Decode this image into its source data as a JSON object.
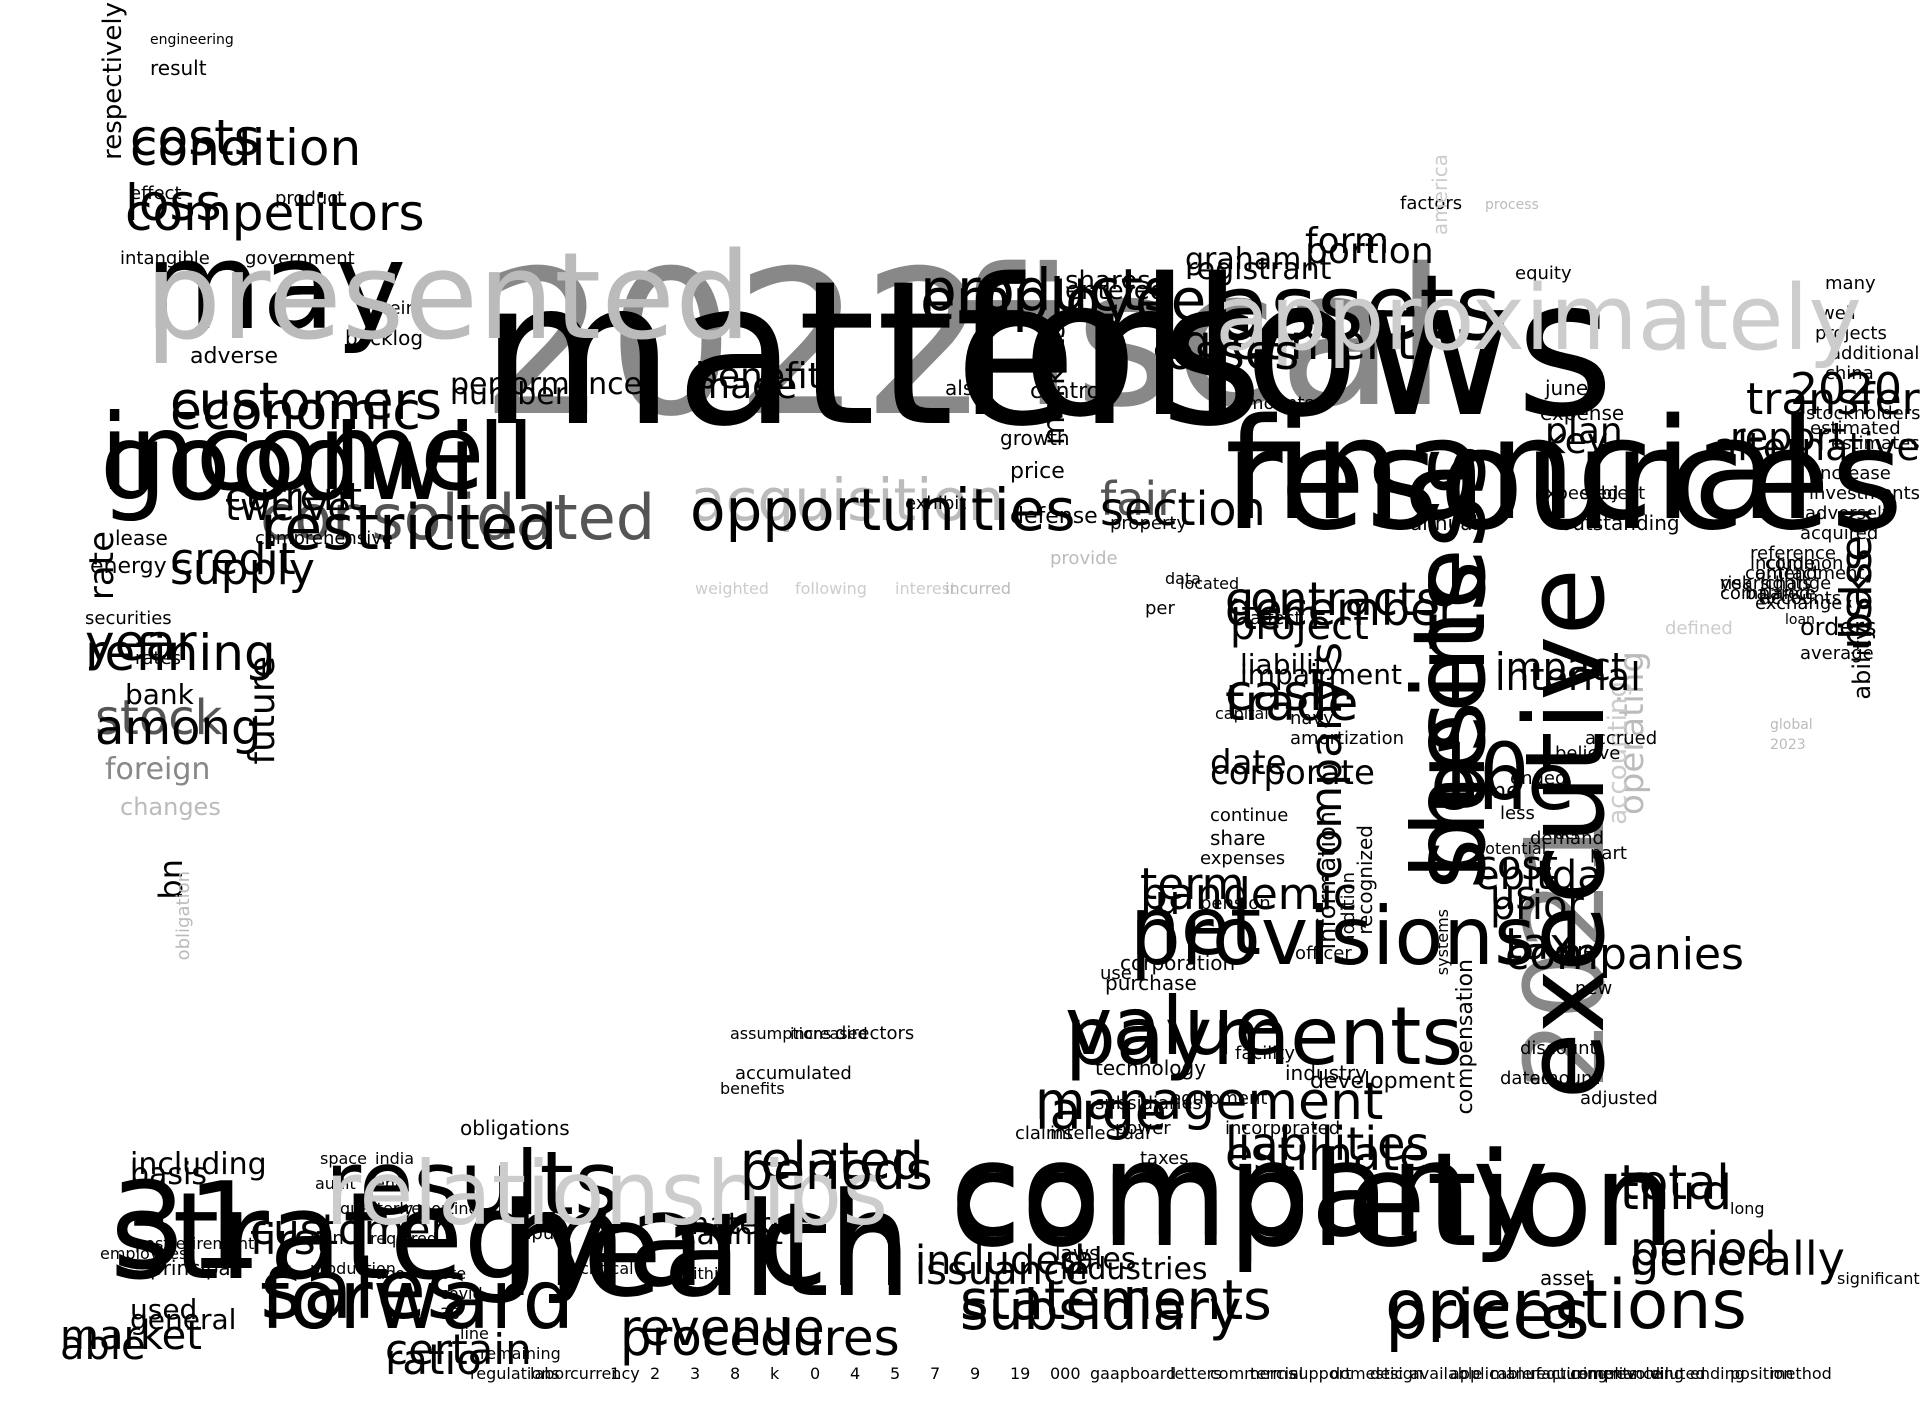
{
  "palette": {
    "black": "#000000",
    "dark_gray": "#555555",
    "mid_gray": "#888888",
    "light_gray": "#bbbbbb",
    "pale_gray": "#cccccc"
  },
  "words": [
    {
      "text": "2022",
      "tone": "mid"
    },
    {
      "text": "fiscal",
      "tone": "mid"
    },
    {
      "text": "financial",
      "tone": "black"
    },
    {
      "text": "company",
      "tone": "black"
    },
    {
      "text": "march",
      "tone": "black"
    },
    {
      "text": "31",
      "tone": "black"
    },
    {
      "text": "2021",
      "tone": "mid"
    },
    {
      "text": "business",
      "tone": "black"
    },
    {
      "text": "may",
      "tone": "black"
    },
    {
      "text": "income",
      "tone": "black"
    },
    {
      "text": "assets",
      "tone": "black"
    },
    {
      "text": "results",
      "tone": "black"
    },
    {
      "text": "sales",
      "tone": "black"
    },
    {
      "text": "operations",
      "tone": "black"
    },
    {
      "text": "statements",
      "tone": "black"
    },
    {
      "text": "value",
      "tone": "black"
    },
    {
      "text": "net",
      "tone": "black"
    },
    {
      "text": "products",
      "tone": "black"
    },
    {
      "text": "consolidated",
      "tone": "dark"
    },
    {
      "text": "acquisition",
      "tone": "light"
    },
    {
      "text": "customers",
      "tone": "black"
    },
    {
      "text": "agreement",
      "tone": "black"
    },
    {
      "text": "contracts",
      "tone": "black"
    },
    {
      "text": "cash",
      "tone": "black"
    },
    {
      "text": "10",
      "tone": "black"
    },
    {
      "text": "management",
      "tone": "black"
    },
    {
      "text": "revenue",
      "tone": "black"
    },
    {
      "text": "related",
      "tone": "black"
    },
    {
      "text": "customer",
      "tone": "black"
    },
    {
      "text": "liabilities",
      "tone": "black"
    },
    {
      "text": "certain",
      "tone": "black"
    },
    {
      "text": "market",
      "tone": "black"
    },
    {
      "text": "period",
      "tone": "black"
    },
    {
      "text": "total",
      "tone": "black"
    },
    {
      "text": "included",
      "tone": "black"
    },
    {
      "text": "costs",
      "tone": "black"
    },
    {
      "text": "loss",
      "tone": "black"
    },
    {
      "text": "credit",
      "tone": "black"
    },
    {
      "text": "year",
      "tone": "black"
    },
    {
      "text": "stock",
      "tone": "dark"
    },
    {
      "text": "current",
      "tone": "black"
    },
    {
      "text": "fair",
      "tone": "dark"
    },
    {
      "text": "benefit",
      "tone": "black"
    },
    {
      "text": "form",
      "tone": "black"
    },
    {
      "text": "graham",
      "tone": "black"
    },
    {
      "text": "report",
      "tone": "black"
    },
    {
      "text": "2020",
      "tone": "black"
    },
    {
      "text": "based",
      "tone": "black"
    },
    {
      "text": "item",
      "tone": "black"
    },
    {
      "text": "impact",
      "tone": "black"
    },
    {
      "text": "tax",
      "tone": "black"
    },
    {
      "text": "cost",
      "tone": "black"
    },
    {
      "text": "us",
      "tone": "black"
    },
    {
      "text": "term",
      "tone": "black"
    },
    {
      "text": "plan",
      "tone": "black"
    },
    {
      "text": "performance",
      "tone": "black"
    },
    {
      "text": "including",
      "tone": "black"
    },
    {
      "text": "material",
      "tone": "black"
    },
    {
      "text": "used",
      "tone": "black"
    },
    {
      "text": "sales",
      "tone": "black"
    },
    {
      "text": "shares",
      "tone": "black"
    },
    {
      "text": "liability",
      "tone": "black"
    },
    {
      "text": "date",
      "tone": "black"
    },
    {
      "text": "company's",
      "tone": "black"
    },
    {
      "text": "operating",
      "tone": "light"
    },
    {
      "text": "accounting",
      "tone": "pale"
    },
    {
      "text": "foreign",
      "tone": "mid"
    },
    {
      "text": "changes",
      "tone": "light"
    },
    {
      "text": "energy",
      "tone": "black"
    },
    {
      "text": "rate",
      "tone": "black"
    },
    {
      "text": "future",
      "tone": "black"
    },
    {
      "text": "respectively",
      "tone": "black"
    },
    {
      "text": "bn",
      "tone": "black"
    },
    {
      "text": "lease",
      "tone": "black"
    },
    {
      "text": "bank",
      "tone": "black"
    },
    {
      "text": "rates",
      "tone": "black"
    },
    {
      "text": "securities",
      "tone": "black"
    },
    {
      "text": "adverse",
      "tone": "black"
    },
    {
      "text": "effect",
      "tone": "black"
    },
    {
      "text": "intangible",
      "tone": "black"
    },
    {
      "text": "government",
      "tone": "black"
    },
    {
      "text": "product",
      "tone": "black"
    },
    {
      "text": "result",
      "tone": "black"
    },
    {
      "text": "engineering",
      "tone": "black"
    },
    {
      "text": "backlog",
      "tone": "black"
    },
    {
      "text": "herein",
      "tone": "black"
    },
    {
      "text": "comprehensive",
      "tone": "black"
    },
    {
      "text": "orders",
      "tone": "black"
    },
    {
      "text": "outstanding",
      "tone": "black"
    },
    {
      "text": "annual",
      "tone": "black"
    },
    {
      "text": "subject",
      "tone": "black"
    },
    {
      "text": "expense",
      "tone": "black"
    },
    {
      "text": "june",
      "tone": "black"
    },
    {
      "text": "equity",
      "tone": "black"
    },
    {
      "text": "expected",
      "tone": "black"
    },
    {
      "text": "defense",
      "tone": "black"
    },
    {
      "text": "price",
      "tone": "black"
    },
    {
      "text": "growth",
      "tone": "black"
    },
    {
      "text": "control",
      "tone": "black"
    },
    {
      "text": "amounts",
      "tone": "black"
    },
    {
      "text": "also",
      "tone": "black"
    },
    {
      "text": "exhibit",
      "tone": "black"
    },
    {
      "text": "markets",
      "tone": "black"
    },
    {
      "text": "property",
      "tone": "black"
    },
    {
      "text": "located",
      "tone": "black"
    },
    {
      "text": "affect",
      "tone": "black"
    },
    {
      "text": "factors",
      "tone": "black"
    },
    {
      "text": "america",
      "tone": "pale"
    },
    {
      "text": "process",
      "tone": "light"
    },
    {
      "text": "weighted",
      "tone": "pale"
    },
    {
      "text": "following",
      "tone": "pale"
    },
    {
      "text": "interest",
      "tone": "pale"
    },
    {
      "text": "incurred",
      "tone": "light"
    },
    {
      "text": "provide",
      "tone": "light"
    },
    {
      "text": "defined",
      "tone": "pale"
    },
    {
      "text": "global",
      "tone": "light"
    },
    {
      "text": "2023",
      "tone": "light"
    },
    {
      "text": "obligation",
      "tone": "light"
    },
    {
      "text": "data",
      "tone": "black"
    },
    {
      "text": "per",
      "tone": "black"
    },
    {
      "text": "u",
      "tone": "black"
    },
    {
      "text": "pension",
      "tone": "black"
    },
    {
      "text": "share",
      "tone": "black"
    },
    {
      "text": "expenses",
      "tone": "black"
    },
    {
      "text": "continue",
      "tone": "black"
    },
    {
      "text": "capital",
      "tone": "black"
    },
    {
      "text": "information",
      "tone": "black"
    },
    {
      "text": "recognized",
      "tone": "black"
    },
    {
      "text": "purchase",
      "tone": "black"
    },
    {
      "text": "corporation",
      "tone": "black"
    },
    {
      "text": "officer",
      "tone": "black"
    },
    {
      "text": "industry",
      "tone": "black"
    },
    {
      "text": "facility",
      "tone": "black"
    },
    {
      "text": "power",
      "tone": "black"
    },
    {
      "text": "incorporated",
      "tone": "black"
    },
    {
      "text": "development",
      "tone": "black"
    },
    {
      "text": "taxes",
      "tone": "black"
    },
    {
      "text": "equipment",
      "tone": "black"
    },
    {
      "text": "compensation",
      "tone": "black"
    },
    {
      "text": "systems",
      "tone": "black"
    },
    {
      "text": "time",
      "tone": "black"
    },
    {
      "text": "due",
      "tone": "black"
    },
    {
      "text": "new",
      "tone": "black"
    },
    {
      "text": "discount",
      "tone": "black"
    },
    {
      "text": "amount",
      "tone": "black"
    },
    {
      "text": "dated",
      "tone": "black"
    },
    {
      "text": "adjusted",
      "tone": "black"
    },
    {
      "text": "asset",
      "tone": "black"
    },
    {
      "text": "long",
      "tone": "black"
    },
    {
      "text": "significant",
      "tone": "black"
    },
    {
      "text": "navy",
      "tone": "black"
    },
    {
      "text": "amortization",
      "tone": "black"
    },
    {
      "text": "accrued",
      "tone": "black"
    },
    {
      "text": "believe",
      "tone": "black"
    },
    {
      "text": "demand",
      "tone": "black"
    },
    {
      "text": "less",
      "tone": "black"
    },
    {
      "text": "act",
      "tone": "black"
    },
    {
      "text": "part",
      "tone": "black"
    },
    {
      "text": "ended",
      "tone": "black"
    },
    {
      "text": "potential",
      "tone": "black"
    },
    {
      "text": "addition",
      "tone": "black"
    },
    {
      "text": "loan",
      "tone": "black"
    },
    {
      "text": "average",
      "tone": "black"
    },
    {
      "text": "ability",
      "tone": "black"
    },
    {
      "text": "exchange",
      "tone": "black"
    },
    {
      "text": "balance",
      "tone": "black"
    },
    {
      "text": "accounts",
      "tone": "black"
    },
    {
      "text": "years",
      "tone": "black"
    },
    {
      "text": "compared",
      "tone": "black"
    },
    {
      "text": "risk",
      "tone": "black"
    },
    {
      "text": "rights",
      "tone": "black"
    },
    {
      "text": "change",
      "tone": "black"
    },
    {
      "text": "amendment",
      "tone": "black"
    },
    {
      "text": "include",
      "tone": "black"
    },
    {
      "text": "common",
      "tone": "black"
    },
    {
      "text": "contract",
      "tone": "black"
    },
    {
      "text": "reference",
      "tone": "black"
    },
    {
      "text": "acquired",
      "tone": "black"
    },
    {
      "text": "adversely",
      "tone": "black"
    },
    {
      "text": "investments",
      "tone": "black"
    },
    {
      "text": "increase",
      "tone": "black"
    },
    {
      "text": "estimates",
      "tone": "black"
    },
    {
      "text": "estimated",
      "tone": "black"
    },
    {
      "text": "stockholders",
      "tone": "black"
    },
    {
      "text": "china",
      "tone": "black"
    },
    {
      "text": "additional",
      "tone": "black"
    },
    {
      "text": "projects",
      "tone": "black"
    },
    {
      "text": "well",
      "tone": "black"
    },
    {
      "text": "many",
      "tone": "black"
    },
    {
      "text": "laws",
      "tone": "black"
    },
    {
      "text": "technology",
      "tone": "black"
    },
    {
      "text": "subsidiaries",
      "tone": "black"
    },
    {
      "text": "claims",
      "tone": "black"
    },
    {
      "text": "intellectual",
      "tone": "black"
    },
    {
      "text": "directors",
      "tone": "black"
    },
    {
      "text": "increased",
      "tone": "black"
    },
    {
      "text": "benefits",
      "tone": "black"
    },
    {
      "text": "accumulated",
      "tone": "black"
    },
    {
      "text": "assumptions",
      "tone": "black"
    },
    {
      "text": "critical",
      "tone": "black"
    },
    {
      "text": "inputs",
      "tone": "black"
    },
    {
      "text": "obligations",
      "tone": "black"
    },
    {
      "text": "end",
      "tone": "black"
    },
    {
      "text": "non",
      "tone": "black"
    },
    {
      "text": "use",
      "tone": "black"
    },
    {
      "text": "principal",
      "tone": "black"
    },
    {
      "text": "postretirement",
      "tone": "black"
    },
    {
      "text": "employees",
      "tone": "black"
    },
    {
      "text": "reporting",
      "tone": "black"
    },
    {
      "text": "audit",
      "tone": "black"
    },
    {
      "text": "space",
      "tone": "black"
    },
    {
      "text": "india",
      "tone": "black"
    },
    {
      "text": "quarterly",
      "tone": "black"
    },
    {
      "text": "required",
      "tone": "black"
    },
    {
      "text": "within",
      "tone": "black"
    },
    {
      "text": "production",
      "tone": "black"
    },
    {
      "text": "upon",
      "tone": "black"
    },
    {
      "text": "note",
      "tone": "black"
    },
    {
      "text": "covid",
      "tone": "black"
    },
    {
      "text": "30",
      "tone": "black"
    },
    {
      "text": "line",
      "tone": "black"
    },
    {
      "text": "remaining",
      "tone": "black"
    },
    {
      "text": "regulations",
      "tone": "black"
    },
    {
      "text": "labor",
      "tone": "black"
    },
    {
      "text": "currency",
      "tone": "black"
    },
    {
      "text": "1",
      "tone": "black"
    },
    {
      "text": "2",
      "tone": "black"
    },
    {
      "text": "3",
      "tone": "black"
    },
    {
      "text": "8",
      "tone": "black"
    },
    {
      "text": "k",
      "tone": "black"
    },
    {
      "text": "0",
      "tone": "black"
    },
    {
      "text": "4",
      "tone": "black"
    },
    {
      "text": "5",
      "tone": "black"
    },
    {
      "text": "7",
      "tone": "black"
    },
    {
      "text": "9",
      "tone": "black"
    },
    {
      "text": "19",
      "tone": "black"
    },
    {
      "text": "000",
      "tone": "black"
    },
    {
      "text": "gaap",
      "tone": "black"
    },
    {
      "text": "board",
      "tone": "black"
    },
    {
      "text": "letters",
      "tone": "black"
    },
    {
      "text": "commercial",
      "tone": "black"
    },
    {
      "text": "terms",
      "tone": "black"
    },
    {
      "text": "support",
      "tone": "black"
    },
    {
      "text": "domestic",
      "tone": "black"
    },
    {
      "text": "design",
      "tone": "black"
    },
    {
      "text": "available",
      "tone": "black"
    },
    {
      "text": "applicable",
      "tone": "black"
    },
    {
      "text": "manufacturing",
      "tone": "black"
    },
    {
      "text": "requirements",
      "tone": "black"
    },
    {
      "text": "compliance",
      "tone": "black"
    },
    {
      "text": "revolving",
      "tone": "black"
    },
    {
      "text": "diluted",
      "tone": "black"
    },
    {
      "text": "ending",
      "tone": "black"
    },
    {
      "text": "position",
      "tone": "black"
    },
    {
      "text": "method",
      "tone": "black"
    },
    {
      "text": "matters",
      "tone": "black"
    },
    {
      "text": "follows",
      "tone": "black"
    },
    {
      "text": "resources",
      "tone": "black"
    },
    {
      "text": "completion",
      "tone": "black"
    },
    {
      "text": "health",
      "tone": "black"
    },
    {
      "text": "strategy",
      "tone": "black"
    },
    {
      "text": "executive",
      "tone": "black"
    },
    {
      "text": "sheets",
      "tone": "black"
    },
    {
      "text": "presented",
      "tone": "light"
    },
    {
      "text": "goodwill",
      "tone": "black"
    },
    {
      "text": "approximately",
      "tone": "pale"
    },
    {
      "text": "relationships",
      "tone": "pale"
    },
    {
      "text": "forward",
      "tone": "black"
    },
    {
      "text": "prices",
      "tone": "black"
    },
    {
      "text": "subsidiary",
      "tone": "black"
    },
    {
      "text": "payments",
      "tone": "black"
    },
    {
      "text": "provisions",
      "tone": "black"
    },
    {
      "text": "employee",
      "tone": "black"
    },
    {
      "text": "restricted",
      "tone": "black"
    },
    {
      "text": "opportunities",
      "tone": "black"
    },
    {
      "text": "economic",
      "tone": "black"
    },
    {
      "text": "losses",
      "tone": "black"
    },
    {
      "text": "december",
      "tone": "black"
    },
    {
      "text": "trade",
      "tone": "black"
    },
    {
      "text": "one",
      "tone": "black"
    },
    {
      "text": "large",
      "tone": "black"
    },
    {
      "text": "procedures",
      "tone": "black"
    },
    {
      "text": "periods",
      "tone": "black"
    },
    {
      "text": "first",
      "tone": "black"
    },
    {
      "text": "estimate",
      "tone": "black"
    },
    {
      "text": "ratio",
      "tone": "black"
    },
    {
      "text": "able",
      "tone": "black"
    },
    {
      "text": "generally",
      "tone": "black"
    },
    {
      "text": "third",
      "tone": "black"
    },
    {
      "text": "issuance",
      "tone": "black"
    },
    {
      "text": "condition",
      "tone": "black"
    },
    {
      "text": "competitors",
      "tone": "black"
    },
    {
      "text": "supply",
      "tone": "black"
    },
    {
      "text": "refining",
      "tone": "black"
    },
    {
      "text": "among",
      "tone": "black"
    },
    {
      "text": "twelve",
      "tone": "black"
    },
    {
      "text": "section",
      "tone": "black"
    },
    {
      "text": "made",
      "tone": "black"
    },
    {
      "text": "portion",
      "tone": "black"
    },
    {
      "text": "registrant",
      "tone": "black"
    },
    {
      "text": "alternative",
      "tone": "black"
    },
    {
      "text": "transfer",
      "tone": "black"
    },
    {
      "text": "risks",
      "tone": "black"
    },
    {
      "text": "project",
      "tone": "black"
    },
    {
      "text": "internal",
      "tone": "black"
    },
    {
      "text": "companies",
      "tone": "black"
    },
    {
      "text": "ebitda",
      "tone": "black"
    },
    {
      "text": "prior",
      "tone": "black"
    },
    {
      "text": "pandemic",
      "tone": "black"
    },
    {
      "text": "key",
      "tone": "black"
    },
    {
      "text": "number",
      "tone": "black"
    },
    {
      "text": "basis",
      "tone": "black"
    },
    {
      "text": "cannot",
      "tone": "black"
    },
    {
      "text": "general",
      "tone": "black"
    },
    {
      "text": "industries",
      "tone": "black"
    },
    {
      "text": "entered",
      "tone": "black"
    },
    {
      "text": "impairment",
      "tone": "black"
    },
    {
      "text": "corporate",
      "tone": "black"
    }
  ]
}
